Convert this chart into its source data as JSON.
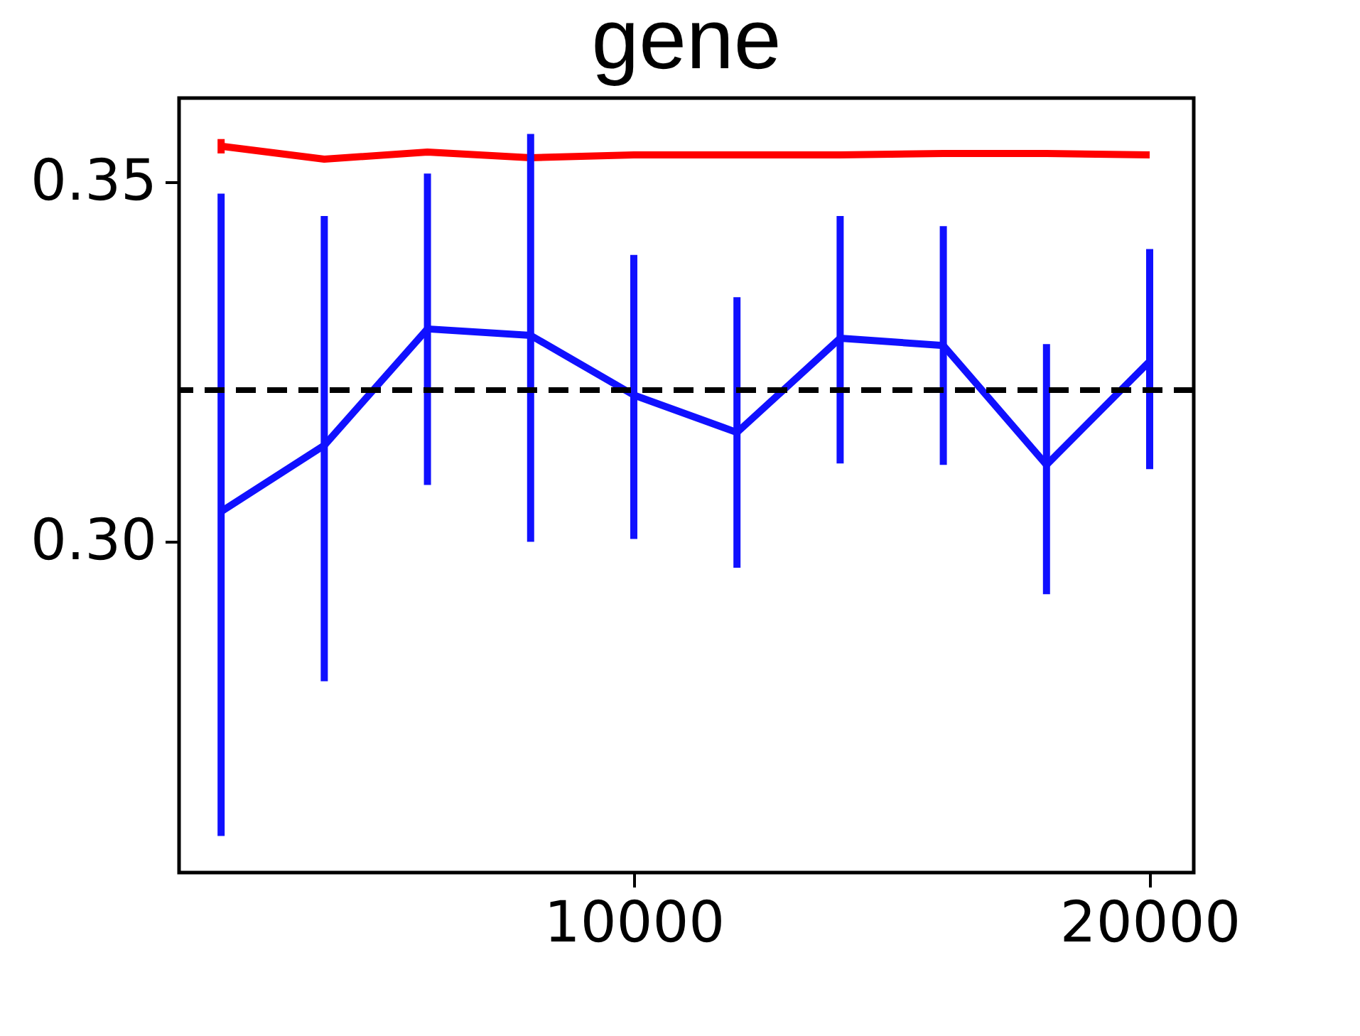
{
  "chart_data": {
    "type": "line",
    "title": "gene",
    "x": [
      2000,
      4000,
      6000,
      8000,
      10000,
      12000,
      14000,
      16000,
      18000,
      20000
    ],
    "series": [
      {
        "color": "#ff0000",
        "values": [
          0.355,
          0.3532,
          0.3542,
          0.3534,
          0.3538,
          0.3538,
          0.3538,
          0.354,
          0.354,
          0.3538
        ],
        "errors": [
          0.001,
          null,
          null,
          null,
          null,
          null,
          null,
          null,
          null,
          null
        ]
      },
      {
        "color": "#1010ff",
        "values": [
          0.3042,
          0.3134,
          0.3296,
          0.3287,
          0.3204,
          0.3152,
          0.3283,
          0.3273,
          0.3107,
          0.3251
        ],
        "errors": [
          [
            0.2591,
            0.3484
          ],
          [
            0.2806,
            0.3453
          ],
          [
            0.3079,
            0.3512
          ],
          [
            0.3,
            0.3567
          ],
          [
            0.3004,
            0.3399
          ],
          [
            0.2964,
            0.334
          ],
          [
            0.3109,
            0.3453
          ],
          [
            0.3107,
            0.3439
          ],
          [
            0.2927,
            0.3275
          ],
          [
            0.3101,
            0.3407
          ]
        ]
      }
    ],
    "ref_lines": [
      {
        "axis": "y",
        "value": 0.3211,
        "color": "#000000",
        "line_style": "dashed"
      }
    ],
    "xlim": [
      1185,
      20854
    ],
    "xticks": [
      10000,
      20000
    ],
    "ylim": [
      0.254,
      0.3617
    ],
    "yticks": [
      {
        "value": 0.3,
        "label": "0.30"
      },
      {
        "value": 0.35,
        "label": "0.35"
      }
    ],
    "grid": false,
    "marker": "none",
    "line_style": "solid"
  }
}
